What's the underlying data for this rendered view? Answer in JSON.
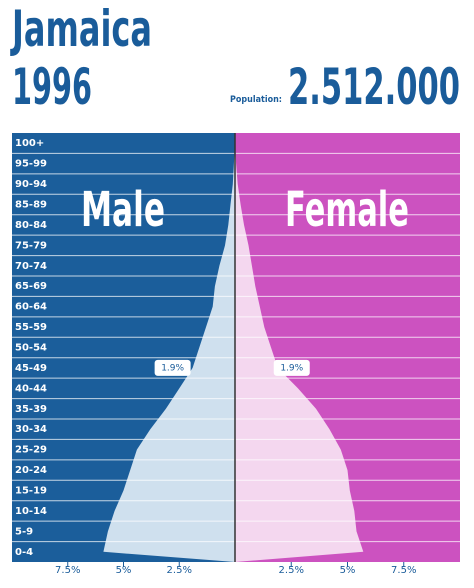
{
  "title": "Jamaica",
  "subtitle": "1996",
  "population_label": "Population:",
  "population": "2.512.000",
  "chart_data": {
    "type": "pyramid",
    "categories": [
      "100+",
      "95-99",
      "90-94",
      "85-89",
      "80-84",
      "75-79",
      "70-74",
      "65-69",
      "60-64",
      "55-59",
      "50-54",
      "45-49",
      "40-44",
      "35-39",
      "30-34",
      "25-29",
      "20-24",
      "15-19",
      "10-14",
      "5-9",
      "0-4"
    ],
    "series": [
      {
        "name": "Male",
        "color": "#1b5e9b",
        "area_color": "#cfe0ee",
        "values": [
          0,
          0.05,
          0.1,
          0.2,
          0.3,
          0.45,
          0.7,
          0.9,
          1.0,
          1.3,
          1.6,
          1.9,
          2.5,
          3.1,
          3.8,
          4.4,
          4.7,
          5.0,
          5.4,
          5.7,
          5.9
        ],
        "value_labels": [
          null,
          null,
          null,
          null,
          null,
          null,
          null,
          null,
          null,
          null,
          null,
          "1.9%",
          null,
          null,
          null,
          null,
          null,
          null,
          null,
          null,
          null
        ]
      },
      {
        "name": "Female",
        "color": "#cc52c0",
        "area_color": "#f4d7ef",
        "values": [
          0,
          0.05,
          0.12,
          0.25,
          0.4,
          0.6,
          0.75,
          0.9,
          1.1,
          1.3,
          1.6,
          1.9,
          2.8,
          3.6,
          4.2,
          4.7,
          5.0,
          5.1,
          5.3,
          5.4,
          5.7
        ],
        "value_labels": [
          null,
          null,
          null,
          null,
          null,
          null,
          null,
          null,
          null,
          null,
          null,
          "1.9%",
          null,
          null,
          null,
          null,
          null,
          null,
          null,
          null,
          null
        ]
      }
    ],
    "xlim": [
      0,
      10
    ],
    "xticks": [
      {
        "value": 2.5,
        "label": "2.5%"
      },
      {
        "value": 5,
        "label": "5%"
      },
      {
        "value": 7.5,
        "label": "7.5%"
      }
    ]
  }
}
